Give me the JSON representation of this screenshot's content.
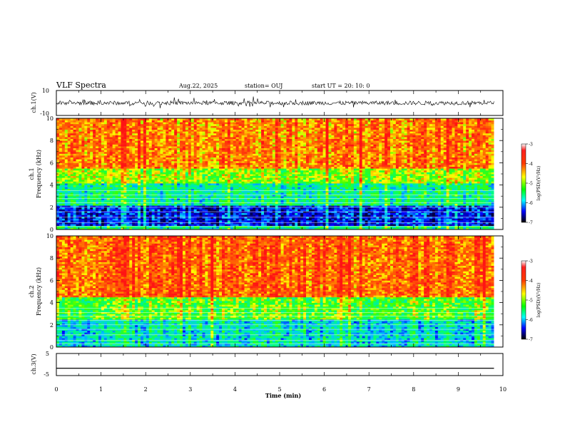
{
  "header": {
    "title": "VLF Spectra",
    "date": "Aug.22, 2025",
    "station": "station= OUJ",
    "start": "start  UT  =   20: 10: 0"
  },
  "chart_data": [
    {
      "type": "line",
      "name": "ch1-waveform",
      "ylabel": "ch.1(V)",
      "ylim": [
        -10,
        10
      ],
      "yticks": [
        "10",
        "-10"
      ],
      "note": "noisy waveform fluctuating around roughly -2 to +2 V with spikes"
    },
    {
      "type": "heatmap",
      "name": "ch1-spectrogram",
      "ylabel": "ch.1\nFrequency (kHz)",
      "ylabel_lines": [
        "ch.1",
        "Frequency  (kHz)"
      ],
      "ylim": [
        0,
        10
      ],
      "yticks": [
        "0",
        "2",
        "4",
        "6",
        "8",
        "10"
      ],
      "colorbar": {
        "label": "log(PSD)(V²/Hz)",
        "range": [
          -7,
          -3
        ],
        "ticks": [
          "-3",
          "-4",
          "-5",
          "-6",
          "-7"
        ]
      },
      "bands_khz": [
        {
          "from": 0.0,
          "to": 0.4,
          "level": -5.2
        },
        {
          "from": 0.4,
          "to": 2.2,
          "level": -6.4
        },
        {
          "from": 2.2,
          "to": 4.2,
          "level": -5.3
        },
        {
          "from": 4.2,
          "to": 5.5,
          "level": -4.5
        },
        {
          "from": 5.5,
          "to": 10.0,
          "level": -3.7
        }
      ]
    },
    {
      "type": "heatmap",
      "name": "ch2-spectrogram",
      "ylabel": "ch.2\nFrequency (kHz)",
      "ylabel_lines": [
        "ch.2",
        "Frequency  (kHz)"
      ],
      "ylim": [
        0,
        10
      ],
      "yticks": [
        "0",
        "2",
        "4",
        "6",
        "8",
        "10"
      ],
      "colorbar": {
        "label": "log(PSD)(V²/Hz)",
        "range": [
          -7,
          -3
        ],
        "ticks": [
          "-3",
          "-4",
          "-5",
          "-6",
          "-7"
        ]
      },
      "bands_khz": [
        {
          "from": 0.0,
          "to": 2.5,
          "level": -5.5
        },
        {
          "from": 2.5,
          "to": 4.5,
          "level": -4.7
        },
        {
          "from": 4.5,
          "to": 10.0,
          "level": -3.5
        }
      ]
    },
    {
      "type": "line",
      "name": "ch3-waveform",
      "ylabel": "ch.3(V)",
      "ylim": [
        -5,
        5
      ],
      "yticks": [
        "5",
        "-5"
      ],
      "x": [
        0,
        9.8
      ],
      "values": [
        -1.7,
        -1.7
      ]
    }
  ],
  "x_axis": {
    "xlabel": "Time  (min)",
    "xlim": [
      0,
      10
    ],
    "data_end_min": 9.8,
    "xticks": [
      "0",
      "1",
      "2",
      "3",
      "4",
      "5",
      "6",
      "7",
      "8",
      "9",
      "10"
    ]
  }
}
